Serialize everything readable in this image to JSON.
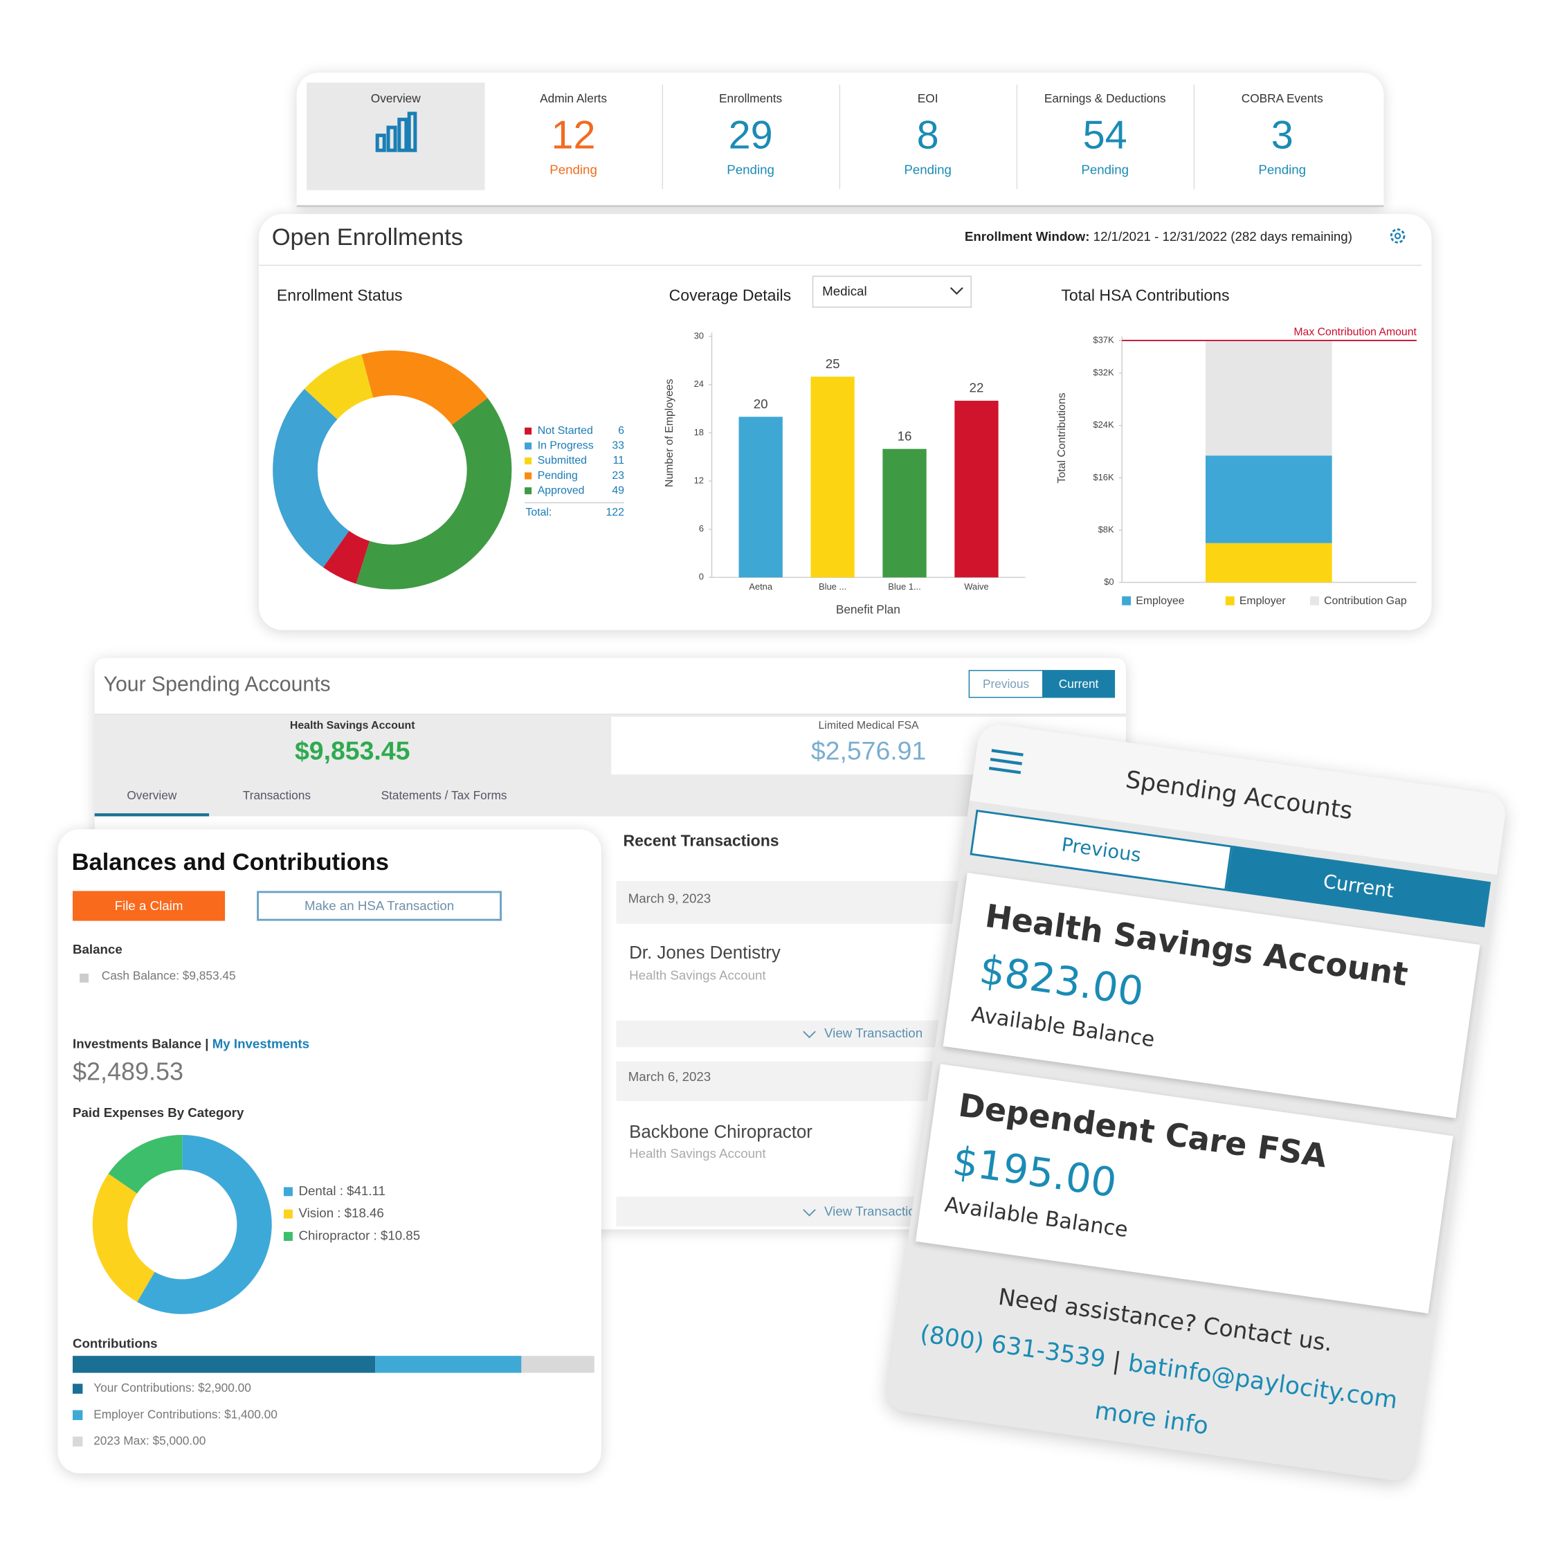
{
  "tabs": [
    {
      "label": "Overview"
    },
    {
      "label": "Admin Alerts",
      "count": 12,
      "status": "Pending"
    },
    {
      "label": "Enrollments",
      "count": 29,
      "status": "Pending"
    },
    {
      "label": "EOI",
      "count": 8,
      "status": "Pending"
    },
    {
      "label": "Earnings & Deductions",
      "count": 54,
      "status": "Pending"
    },
    {
      "label": "COBRA Events",
      "count": 3,
      "status": "Pending"
    }
  ],
  "open_enrollments": {
    "title": "Open Enrollments",
    "window_label": "Enrollment Window:",
    "window_value": "12/1/2021 - 12/31/2022 (282 days remaining)",
    "enrollment_status": {
      "type": "pie",
      "title": "Enrollment Status",
      "categories": [
        "Not Started",
        "In Progress",
        "Submitted",
        "Pending",
        "Approved"
      ],
      "values": [
        6,
        33,
        11,
        23,
        49
      ],
      "colors": [
        "#d0142c",
        "#3fa3d3",
        "#f9d51a",
        "#fb8a10",
        "#3f9a44"
      ],
      "total_label": "Total:",
      "total": 122
    },
    "coverage_details": {
      "type": "bar",
      "title": "Coverage Details",
      "filter": "Medical",
      "categories": [
        "Aetna",
        "Blue ...",
        "Blue 1...",
        "Waive"
      ],
      "values": [
        20,
        25,
        16,
        22
      ],
      "colors": [
        "#3ea7d4",
        "#fdd411",
        "#3f9a44",
        "#d0142c"
      ],
      "ylim": [
        0,
        30
      ],
      "yticks": [
        0,
        6,
        12,
        18,
        24,
        30
      ],
      "y_label": "Number of Employees",
      "x_label": "Benefit Plan"
    },
    "hsa_contributions": {
      "type": "bar",
      "stacked": true,
      "title": "Total HSA Contributions",
      "series": [
        {
          "name": "Employer",
          "color": "#fdd411",
          "values": [
            6000
          ]
        },
        {
          "name": "Employee",
          "color": "#3fa7d6",
          "values": [
            13400
          ]
        },
        {
          "name": "Contribution Gap",
          "color": "#e6e6e6",
          "values": [
            17600
          ]
        }
      ],
      "ylim": [
        0,
        37000
      ],
      "yticks": [
        {
          "value": 0,
          "label": "$0"
        },
        {
          "value": 8000,
          "label": "$8K"
        },
        {
          "value": 16000,
          "label": "$16K"
        },
        {
          "value": 24000,
          "label": "$24K"
        },
        {
          "value": 32000,
          "label": "$32K"
        },
        {
          "value": 37000,
          "label": "$37K"
        }
      ],
      "y_label": "Total Contributions",
      "max_line": {
        "value": 37000,
        "label": "Max Contribution Amount",
        "color": "#c8102e"
      }
    }
  },
  "spending_accounts": {
    "title": "Your Spending Accounts",
    "toggle": [
      "Previous",
      "Current"
    ],
    "accounts": [
      {
        "name": "Health Savings Account",
        "balance": "$9,853.45"
      },
      {
        "name": "Limited Medical FSA",
        "balance": "$2,576.91"
      }
    ],
    "tabs": [
      "Overview",
      "Transactions",
      "Statements / Tax Forms"
    ]
  },
  "recent_transactions": {
    "title": "Recent Transactions",
    "items": [
      {
        "date": "March 9, 2023",
        "merchant": "Dr. Jones Dentistry",
        "account": "Health Savings Account",
        "action": "View Transaction"
      },
      {
        "date": "March 6, 2023",
        "merchant": "Backbone Chiropractor",
        "account": "Health Savings Account",
        "action": "View Transaction"
      }
    ]
  },
  "balances": {
    "title": "Balances and Contributions",
    "buttons": [
      "File a Claim",
      "Make an HSA Transaction"
    ],
    "balance_label": "Balance",
    "cash_balance": "Cash Balance: $9,853.45",
    "investments_label": "Investments Balance",
    "investments_separator": "|",
    "investments_link": "My Investments",
    "investments_value": "$2,489.53",
    "paid_expenses": {
      "type": "pie",
      "title": "Paid Expenses By Category",
      "values": [
        41.11,
        18.46,
        10.85
      ],
      "value_labels": [
        "Dental : $41.11",
        "Vision : $18.46",
        "Chiropractor : $10.85"
      ],
      "colors": [
        "#3da9d8",
        "#fcd21c",
        "#3dbe6a"
      ]
    },
    "contributions": {
      "type": "bar",
      "orientation": "horizontal",
      "stacked": true,
      "title": "Contributions",
      "xlim": [
        0,
        5000
      ],
      "series": [
        {
          "color": "#1a6f94",
          "values": [
            2900
          ],
          "value_labels": [
            "Your Contributions: $2,900.00"
          ]
        },
        {
          "color": "#3fa9d6",
          "values": [
            1400
          ],
          "value_labels": [
            "Employer Contributions: $1,400.00"
          ]
        }
      ],
      "max": {
        "value": 5000,
        "label": "2023 Max: $5,000.00",
        "color": "#d9d9d9"
      }
    }
  },
  "mobile": {
    "title": "Spending Accounts",
    "toggle": [
      "Previous",
      "Current"
    ],
    "cards": [
      {
        "name": "Health Savings Account",
        "amount": "$823.00",
        "caption": "Available Balance"
      },
      {
        "name": "Dependent Care FSA",
        "amount": "$195.00",
        "caption": "Available Balance"
      }
    ],
    "help": "Need assistance? Contact us.",
    "phone": "(800) 631-3539",
    "separator": "|",
    "email": "batinfo@paylocity.com",
    "more": "more info"
  }
}
